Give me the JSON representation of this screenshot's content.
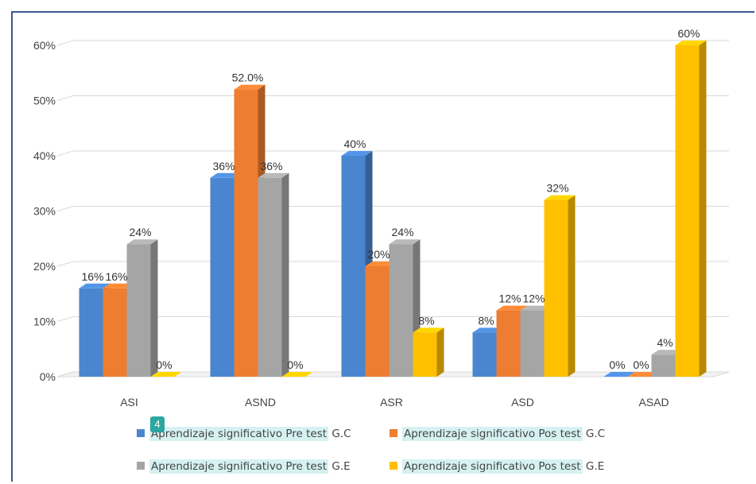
{
  "chart_data": {
    "type": "bar",
    "three_d": true,
    "categories": [
      "ASI",
      "ASND",
      "ASR",
      "ASD",
      "ASAD"
    ],
    "yticks": [
      "0%",
      "10%",
      "20%",
      "30%",
      "40%",
      "50%",
      "60%"
    ],
    "ylim": [
      0,
      60
    ],
    "grid": true,
    "legend_position": "bottom",
    "series": [
      {
        "name": "Aprendizaje significativo Pre test G.C",
        "values": [
          16,
          36,
          40,
          8,
          0
        ],
        "labels": [
          "16%",
          "36%",
          "40%",
          "8%",
          "0%"
        ],
        "color": "#4a86d0"
      },
      {
        "name": "Aprendizaje significativo Pos test G.C",
        "values": [
          16,
          52,
          20,
          12,
          0
        ],
        "labels": [
          "16%",
          "52.0%",
          "20%",
          "12%",
          "0%"
        ],
        "color": "#ed7d31"
      },
      {
        "name": "Aprendizaje significativo Pre test G.E",
        "values": [
          24,
          36,
          24,
          12,
          4
        ],
        "labels": [
          "24%",
          "36%",
          "24%",
          "12%",
          "4%"
        ],
        "color": "#a5a5a5"
      },
      {
        "name": "Aprendizaje significativo Pos test G.E",
        "values": [
          0,
          0,
          8,
          32,
          60
        ],
        "labels": [
          "0%",
          "0%",
          "8%",
          "32%",
          "60%"
        ],
        "color": "#ffc000"
      }
    ]
  },
  "legend": {
    "items": [
      {
        "text": "Aprendizaje significativo Pre test",
        "suffix": " G.C"
      },
      {
        "text": "Aprendizaje significativo Pos test",
        "suffix": " G.C"
      },
      {
        "text": "Aprendizaje significativo Pre test",
        "suffix": " G.E"
      },
      {
        "text": "Aprendizaje significativo Pos test",
        "suffix": " G.E"
      }
    ]
  },
  "note_badge": "4"
}
